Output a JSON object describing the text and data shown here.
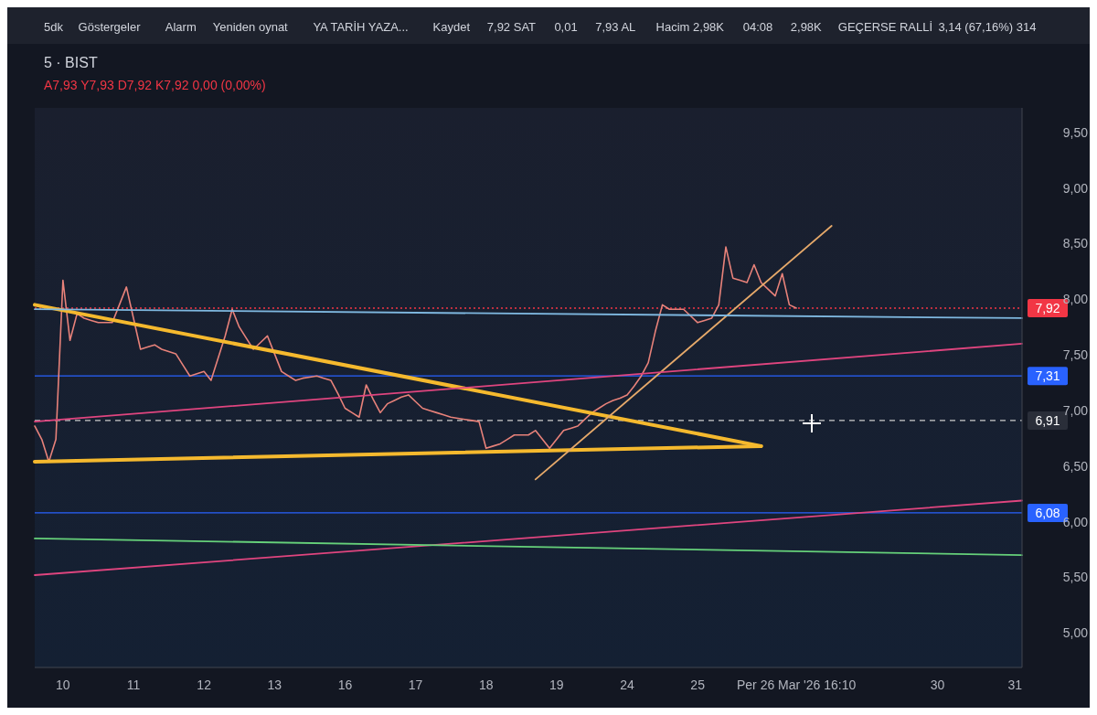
{
  "chart_data": {
    "type": "line",
    "title": "5 · BIST",
    "subtitle": "A7,93 Y7,93 D7,92 K7,92 0,00 (0,00%)",
    "annotations": [
      "5dk",
      "Göstergeler",
      "Alarm",
      "Yeniden oynat",
      "YA TARİH YAZA...",
      "Kaydet",
      "7,92 SAT",
      "0,01",
      "7,93 AL",
      "Hacim 2,98K",
      "04:08",
      "2,98K",
      "GEÇERSE RALLİ",
      "3,14 (67,16%) 314"
    ],
    "categories": [
      null,
      null,
      null,
      null,
      "10",
      null,
      null,
      null,
      null,
      null,
      null,
      null,
      null,
      null,
      "11",
      null,
      null,
      null,
      null,
      null,
      null,
      null,
      null,
      null,
      "12",
      null,
      null,
      null,
      null,
      null,
      null,
      null,
      null,
      null,
      "13",
      null,
      null,
      null,
      null,
      null,
      null,
      null,
      null,
      null,
      "16",
      null,
      null,
      null,
      null,
      null,
      null,
      null,
      null,
      null,
      "17",
      null,
      null,
      null,
      null,
      null,
      null,
      null,
      null,
      null,
      "18",
      null,
      null,
      null,
      null,
      null,
      null,
      null,
      null,
      null,
      "19",
      null,
      null,
      null,
      null,
      null,
      null,
      null,
      null,
      null,
      "24",
      null,
      null,
      null,
      null,
      null,
      null,
      null,
      null,
      null,
      "25",
      null,
      null,
      null,
      null,
      null,
      null,
      null,
      null,
      null,
      null,
      null,
      null,
      null,
      "Per 26 Mar '26  16:10",
      null,
      null,
      null,
      null,
      null,
      null,
      null,
      null,
      null,
      null,
      null,
      null,
      null,
      null,
      null,
      null,
      null,
      null,
      null,
      "30",
      null,
      null,
      null,
      null,
      null,
      null,
      null,
      null,
      null,
      null,
      "31",
      null
    ],
    "ylim": [
      4.69,
      9.72
    ],
    "yticks": [
      {
        "value": 5,
        "label": "5,00"
      },
      {
        "value": 5.5,
        "label": "5,50"
      },
      {
        "value": 6,
        "label": "6,00"
      },
      {
        "value": 6.5,
        "label": "6,50"
      },
      {
        "value": 7,
        "label": "7,00"
      },
      {
        "value": 7.5,
        "label": "7,50"
      },
      {
        "value": 8,
        "label": "8,00"
      },
      {
        "value": 8.5,
        "label": "8,50"
      },
      {
        "value": 9,
        "label": "9,00"
      },
      {
        "value": 9.5,
        "label": "9,50"
      }
    ],
    "series": [
      {
        "color": "#e8827a",
        "values": [
          6.86,
          6.74,
          6.54,
          6.74,
          8.17,
          7.63,
          7.87,
          7.83,
          7.81,
          7.79,
          7.79,
          7.79,
          7.95,
          8.11,
          7.83,
          7.55,
          7.57,
          7.59,
          7.55,
          7.53,
          7.51,
          7.41,
          7.31,
          7.33,
          7.35,
          7.27,
          7.47,
          7.67,
          7.91,
          7.75,
          7.65,
          7.55,
          7.61,
          7.67,
          7.51,
          7.35,
          7.31,
          7.27,
          7.29,
          7.3,
          7.31,
          7.29,
          7.27,
          7.15,
          7.02,
          6.98,
          6.94,
          7.23,
          7.1,
          6.98,
          7.06,
          7.09,
          7.12,
          7.14,
          7.08,
          7.02,
          7,
          6.98,
          6.96,
          6.94,
          6.93,
          6.92,
          6.91,
          6.9,
          6.66,
          6.68,
          6.7,
          6.74,
          6.78,
          6.78,
          6.78,
          6.82,
          6.74,
          6.66,
          6.74,
          6.82,
          6.84,
          6.86,
          6.92,
          6.98,
          7.02,
          7.06,
          7.09,
          7.11,
          7.14,
          7.22,
          7.31,
          7.43,
          7.71,
          7.95,
          7.91,
          7.91,
          7.91,
          7.85,
          7.79,
          7.81,
          7.83,
          7.95,
          8.47,
          8.19,
          8.17,
          8.15,
          8.31,
          8.15,
          8.09,
          8.03,
          8.23,
          7.95,
          7.92,
          null,
          null,
          null,
          null,
          null,
          null,
          null,
          null,
          null,
          null,
          null,
          null,
          null,
          null,
          null,
          null,
          null,
          null,
          null,
          null,
          null,
          null,
          null,
          null,
          null,
          null,
          null,
          null,
          null,
          null,
          null,
          null
        ]
      },
      {
        "color": "#f5b92e",
        "values": [
          7.95,
          null,
          null,
          null,
          null,
          null,
          null,
          null,
          null,
          null,
          null,
          null,
          null,
          null,
          null,
          null,
          null,
          null,
          null,
          null,
          null,
          null,
          null,
          null,
          null,
          null,
          null,
          null,
          null,
          null,
          null,
          null,
          null,
          null,
          null,
          null,
          null,
          null,
          null,
          null,
          null,
          null,
          null,
          null,
          null,
          null,
          null,
          null,
          null,
          null,
          null,
          null,
          null,
          null,
          null,
          null,
          null,
          null,
          null,
          null,
          null,
          null,
          null,
          null,
          null,
          null,
          null,
          null,
          null,
          null,
          null,
          null,
          null,
          null,
          null,
          null,
          null,
          null,
          null,
          null,
          null,
          null,
          null,
          null,
          null,
          null,
          null,
          null,
          null,
          null,
          null,
          null,
          null,
          null,
          null,
          null,
          null,
          null,
          null,
          null,
          null,
          null,
          null,
          6.68,
          null,
          null,
          null,
          null,
          null,
          null,
          null,
          null,
          null,
          null,
          null,
          null,
          null,
          null,
          null,
          null,
          null,
          null,
          null,
          null,
          null,
          null,
          null,
          null,
          null,
          null,
          null,
          null,
          null,
          null,
          null,
          null,
          null,
          null,
          null,
          null,
          null
        ]
      },
      {
        "color": "#f5b92e",
        "values": [
          6.54,
          null,
          null,
          null,
          null,
          null,
          null,
          null,
          null,
          null,
          null,
          null,
          null,
          null,
          null,
          null,
          null,
          null,
          null,
          null,
          null,
          null,
          null,
          null,
          null,
          null,
          null,
          null,
          null,
          null,
          null,
          null,
          null,
          null,
          null,
          null,
          null,
          null,
          null,
          null,
          null,
          null,
          null,
          null,
          null,
          null,
          null,
          null,
          null,
          null,
          null,
          null,
          null,
          null,
          null,
          null,
          null,
          null,
          null,
          null,
          null,
          null,
          null,
          null,
          null,
          null,
          null,
          null,
          null,
          null,
          null,
          null,
          null,
          null,
          null,
          null,
          null,
          null,
          null,
          null,
          null,
          null,
          null,
          null,
          null,
          null,
          null,
          null,
          null,
          null,
          null,
          null,
          null,
          null,
          null,
          null,
          null,
          null,
          null,
          null,
          null,
          null,
          null,
          6.68,
          null,
          null,
          null,
          null,
          null,
          null,
          null,
          null,
          null,
          null,
          null,
          null,
          null,
          null,
          null,
          null,
          null,
          null,
          null,
          null,
          null,
          null,
          null,
          null,
          null,
          null,
          null,
          null,
          null,
          null,
          null,
          null,
          null,
          null,
          null,
          null,
          null
        ]
      },
      {
        "color": "#e6a96a",
        "values": [
          null,
          null,
          null,
          null,
          null,
          null,
          null,
          null,
          null,
          null,
          null,
          null,
          null,
          null,
          null,
          null,
          null,
          null,
          null,
          null,
          null,
          null,
          null,
          null,
          null,
          null,
          null,
          null,
          null,
          null,
          null,
          null,
          null,
          null,
          null,
          null,
          null,
          null,
          null,
          null,
          null,
          null,
          null,
          null,
          null,
          null,
          null,
          null,
          null,
          null,
          null,
          null,
          null,
          null,
          null,
          null,
          null,
          null,
          null,
          null,
          null,
          null,
          null,
          null,
          null,
          null,
          null,
          null,
          null,
          null,
          null,
          6.38,
          null,
          null,
          null,
          null,
          null,
          null,
          null,
          null,
          null,
          null,
          null,
          null,
          null,
          null,
          null,
          null,
          null,
          null,
          null,
          null,
          null,
          null,
          null,
          null,
          null,
          null,
          null,
          null,
          null,
          null,
          null,
          null,
          null,
          null,
          null,
          null,
          null,
          null,
          null,
          null,
          null,
          8.66,
          null,
          null,
          null,
          null,
          null,
          null,
          null,
          null,
          null,
          null,
          null,
          null,
          null,
          null,
          null,
          null,
          null,
          null,
          null,
          null,
          null,
          null,
          null,
          null,
          null,
          null,
          null
        ]
      },
      {
        "color": "#e0457f",
        "values": [
          6.9,
          null,
          null,
          null,
          null,
          null,
          null,
          null,
          null,
          null,
          null,
          null,
          null,
          null,
          null,
          null,
          null,
          null,
          null,
          null,
          null,
          null,
          null,
          null,
          null,
          null,
          null,
          null,
          null,
          null,
          null,
          null,
          null,
          null,
          null,
          null,
          null,
          null,
          null,
          null,
          null,
          null,
          null,
          null,
          null,
          null,
          null,
          null,
          null,
          null,
          null,
          null,
          null,
          null,
          null,
          null,
          null,
          null,
          null,
          null,
          null,
          null,
          null,
          null,
          null,
          null,
          null,
          null,
          null,
          null,
          null,
          null,
          null,
          null,
          null,
          null,
          null,
          null,
          null,
          null,
          null,
          null,
          null,
          null,
          null,
          null,
          null,
          null,
          null,
          null,
          null,
          null,
          null,
          null,
          null,
          null,
          null,
          null,
          null,
          null,
          null,
          null,
          null,
          null,
          null,
          null,
          null,
          null,
          null,
          null,
          null,
          null,
          null,
          null,
          null,
          null,
          null,
          null,
          null,
          null,
          null,
          null,
          null,
          null,
          null,
          null,
          null,
          null,
          null,
          null,
          null,
          null,
          null,
          null,
          null,
          null,
          null,
          null,
          null,
          null,
          7.6
        ]
      },
      {
        "color": "#e0457f",
        "values": [
          5.52,
          null,
          null,
          null,
          null,
          null,
          null,
          null,
          null,
          null,
          null,
          null,
          null,
          null,
          null,
          null,
          null,
          null,
          null,
          null,
          null,
          null,
          null,
          null,
          null,
          null,
          null,
          null,
          null,
          null,
          null,
          null,
          null,
          null,
          null,
          null,
          null,
          null,
          null,
          null,
          null,
          null,
          null,
          null,
          null,
          null,
          null,
          null,
          null,
          null,
          null,
          null,
          null,
          null,
          null,
          null,
          null,
          null,
          null,
          null,
          null,
          null,
          null,
          null,
          null,
          null,
          null,
          null,
          null,
          null,
          null,
          null,
          null,
          null,
          null,
          null,
          null,
          null,
          null,
          null,
          null,
          null,
          null,
          null,
          null,
          null,
          null,
          null,
          null,
          null,
          null,
          null,
          null,
          null,
          null,
          null,
          null,
          null,
          null,
          null,
          null,
          null,
          null,
          null,
          null,
          null,
          null,
          null,
          null,
          null,
          null,
          null,
          null,
          null,
          null,
          null,
          null,
          null,
          null,
          null,
          null,
          null,
          null,
          null,
          null,
          null,
          null,
          null,
          null,
          null,
          null,
          null,
          null,
          null,
          null,
          null,
          null,
          null,
          null,
          null,
          6.19
        ]
      },
      {
        "color": "#7fb8e0",
        "values": [
          7.91,
          null,
          null,
          null,
          null,
          null,
          null,
          null,
          null,
          null,
          null,
          null,
          null,
          null,
          null,
          null,
          null,
          null,
          null,
          null,
          null,
          null,
          null,
          null,
          null,
          null,
          null,
          null,
          null,
          null,
          null,
          null,
          null,
          null,
          null,
          null,
          null,
          null,
          null,
          null,
          null,
          null,
          null,
          null,
          null,
          null,
          null,
          null,
          null,
          null,
          null,
          null,
          null,
          null,
          null,
          null,
          null,
          null,
          null,
          null,
          null,
          null,
          null,
          null,
          null,
          null,
          null,
          null,
          null,
          null,
          null,
          null,
          null,
          null,
          null,
          null,
          null,
          null,
          null,
          null,
          null,
          null,
          null,
          null,
          null,
          null,
          null,
          null,
          null,
          null,
          null,
          null,
          null,
          null,
          null,
          null,
          null,
          null,
          null,
          null,
          null,
          null,
          null,
          null,
          null,
          null,
          null,
          null,
          null,
          null,
          null,
          null,
          null,
          null,
          null,
          null,
          null,
          null,
          null,
          null,
          null,
          null,
          null,
          null,
          null,
          null,
          null,
          null,
          null,
          null,
          null,
          null,
          null,
          null,
          null,
          null,
          null,
          null,
          null,
          null,
          7.83
        ]
      },
      {
        "color": "#66d17a",
        "values": [
          5.85,
          null,
          null,
          null,
          null,
          null,
          null,
          null,
          null,
          null,
          null,
          null,
          null,
          null,
          null,
          null,
          null,
          null,
          null,
          null,
          null,
          null,
          null,
          null,
          null,
          null,
          null,
          null,
          null,
          null,
          null,
          null,
          null,
          null,
          null,
          null,
          null,
          null,
          null,
          null,
          null,
          null,
          null,
          null,
          null,
          null,
          null,
          null,
          null,
          null,
          null,
          null,
          null,
          null,
          null,
          null,
          null,
          null,
          null,
          null,
          null,
          null,
          null,
          null,
          null,
          null,
          null,
          null,
          null,
          null,
          null,
          null,
          null,
          null,
          null,
          null,
          null,
          null,
          null,
          null,
          null,
          null,
          null,
          null,
          null,
          null,
          null,
          null,
          null,
          null,
          null,
          null,
          null,
          null,
          null,
          null,
          null,
          null,
          null,
          null,
          null,
          null,
          null,
          null,
          null,
          null,
          null,
          null,
          null,
          null,
          null,
          null,
          null,
          null,
          null,
          null,
          null,
          null,
          null,
          null,
          null,
          null,
          null,
          null,
          null,
          null,
          null,
          null,
          null,
          null,
          null,
          null,
          null,
          null,
          null,
          null,
          null,
          null,
          null,
          null,
          5.7
        ]
      }
    ],
    "ref_lines": [
      {
        "axis": "y",
        "value": 7.92,
        "label": "7,92",
        "color": "#f23645",
        "line_style": "dotted"
      },
      {
        "axis": "y",
        "value": 7.31,
        "label": "7,31",
        "color": "#2962ff",
        "line_style": "solid"
      },
      {
        "axis": "y",
        "value": 6.91,
        "label": "6,91",
        "color": "#cccccc",
        "line_style": "dashed"
      },
      {
        "axis": "y",
        "value": 6.08,
        "label": "6,08",
        "color": "#2962ff",
        "line_style": "solid"
      }
    ]
  }
}
